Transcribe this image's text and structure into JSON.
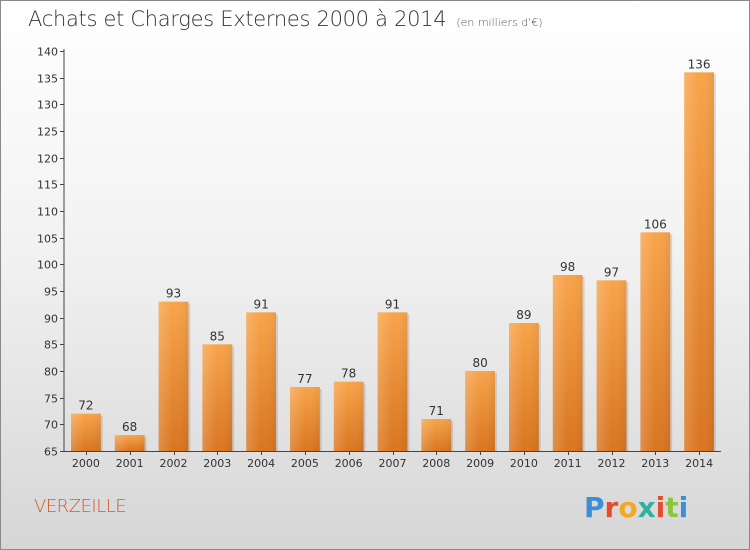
{
  "title": "Achats et Charges Externes 2000 à 2014",
  "subtitle": "(en milliers d'€)",
  "commune": "VERZEILLE",
  "logo_text": "Proxiti",
  "colors": {
    "bar_top": "#f8a44a",
    "bar_bottom": "#d97520",
    "commune": "#d85a2a"
  },
  "chart_data": {
    "type": "bar",
    "title": "Achats et Charges Externes 2000 à 2014",
    "subtitle": "(en milliers d'€)",
    "categories": [
      "2000",
      "2001",
      "2002",
      "2003",
      "2004",
      "2005",
      "2006",
      "2007",
      "2008",
      "2009",
      "2010",
      "2011",
      "2012",
      "2013",
      "2014"
    ],
    "values": [
      72,
      68,
      93,
      85,
      91,
      77,
      78,
      91,
      71,
      80,
      89,
      98,
      97,
      106,
      136
    ],
    "ylim": [
      65,
      140
    ],
    "yticks": [
      65,
      70,
      75,
      80,
      85,
      90,
      95,
      100,
      105,
      110,
      115,
      120,
      125,
      130,
      135,
      140
    ],
    "grid": false,
    "legend": "none"
  }
}
